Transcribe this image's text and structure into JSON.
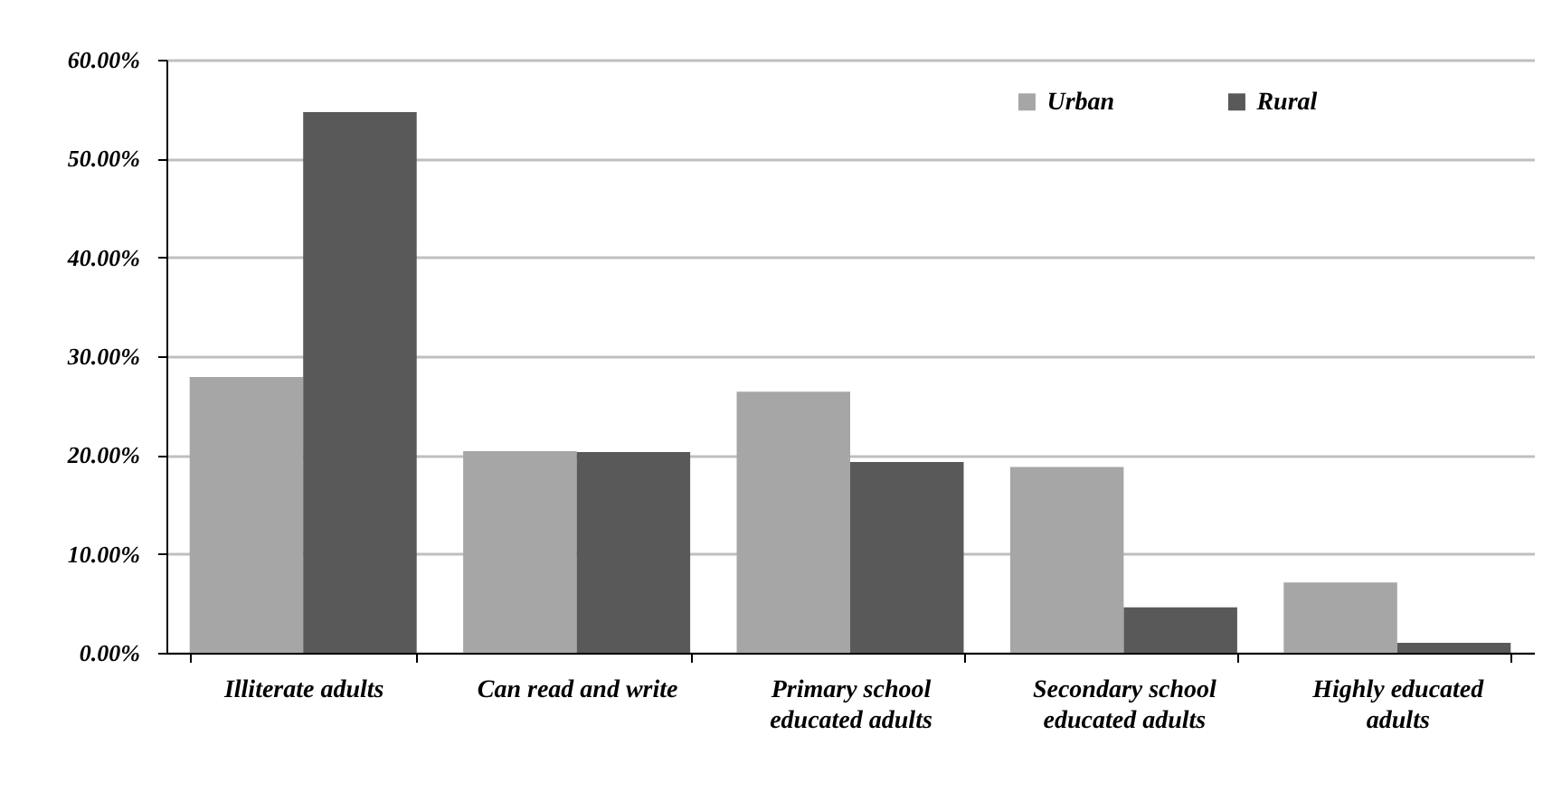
{
  "chart_data": {
    "type": "bar",
    "categories": [
      "Illiterate adults",
      "Can read and write",
      "Primary school educated adults",
      "Secondary school educated adults",
      "Highly educated adults"
    ],
    "series": [
      {
        "name": "Urban",
        "color": "#a6a6a6",
        "values": [
          27.9,
          20.4,
          26.4,
          18.8,
          7.1
        ]
      },
      {
        "name": "Rural",
        "color": "#595959",
        "values": [
          54.7,
          20.3,
          19.3,
          4.6,
          1.0
        ]
      }
    ],
    "ylim": [
      0,
      60
    ],
    "yticks": [
      {
        "value": 0,
        "label": "0.00%"
      },
      {
        "value": 10,
        "label": "10.00%"
      },
      {
        "value": 20,
        "label": "20.00%"
      },
      {
        "value": 30,
        "label": "30.00%"
      },
      {
        "value": 40,
        "label": "40.00%"
      },
      {
        "value": 50,
        "label": "50.00%"
      },
      {
        "value": 60,
        "label": "60.00%"
      }
    ],
    "grid": "y",
    "legend": "top right"
  }
}
